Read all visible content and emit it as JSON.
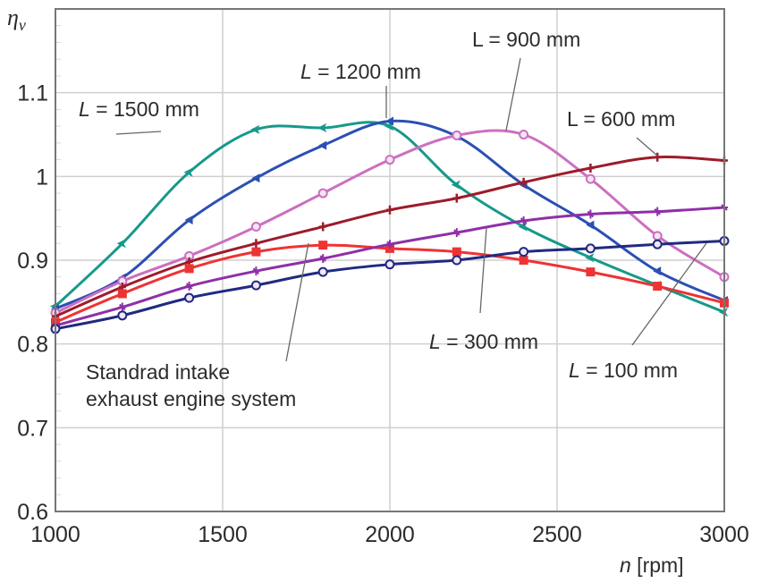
{
  "chart_data": {
    "type": "line",
    "title": "",
    "xlabel_var": "n",
    "xlabel_unit": " [rpm]",
    "ylabel_var": "η",
    "ylabel_sub": "v",
    "xlim": [
      1000,
      3000
    ],
    "ylim": [
      0.6,
      1.2
    ],
    "xticks": [
      1000,
      1500,
      2000,
      2500,
      3000
    ],
    "xtick_labels": [
      "1000",
      "1500",
      "2000",
      "2500",
      "3000"
    ],
    "yticks": [
      0.6,
      0.7,
      0.8,
      0.9,
      1.0,
      1.1
    ],
    "ytick_labels": [
      "0.6",
      "0.7",
      "0.8",
      "0.9",
      "1",
      "1.1"
    ],
    "grid": true,
    "x": [
      1000,
      1200,
      1400,
      1600,
      1800,
      2000,
      2200,
      2400,
      2600,
      2800,
      3000
    ],
    "series": [
      {
        "name": "L = 1500 mm",
        "color": "#17998a",
        "marker": "diamond",
        "values": [
          0.845,
          0.92,
          1.005,
          1.056,
          1.058,
          1.06,
          0.99,
          0.94,
          0.903,
          0.87,
          0.838
        ]
      },
      {
        "name": "L = 1200 mm",
        "color": "#2b4fb3",
        "marker": "triangle",
        "values": [
          0.842,
          0.879,
          0.948,
          0.998,
          1.037,
          1.066,
          1.048,
          0.99,
          0.942,
          0.887,
          0.852
        ]
      },
      {
        "name": "L = 900 mm",
        "color": "#cc6fc0",
        "marker": "circle-open",
        "values": [
          0.837,
          0.875,
          0.905,
          0.94,
          0.98,
          1.02,
          1.049,
          1.05,
          0.997,
          0.929,
          0.88
        ]
      },
      {
        "name": "L = 600 mm",
        "color": "#9e1b2a",
        "marker": "plus",
        "values": [
          0.833,
          0.868,
          0.898,
          0.92,
          0.94,
          0.96,
          0.974,
          0.993,
          1.01,
          1.023,
          1.019
        ]
      },
      {
        "name": "Standrad intake exhaust engine system",
        "color": "#ee3333",
        "marker": "square",
        "values": [
          0.826,
          0.86,
          0.89,
          0.91,
          0.918,
          0.914,
          0.91,
          0.9,
          0.886,
          0.869,
          0.849
        ]
      },
      {
        "name": "L = 300 mm",
        "color": "#8f2fa8",
        "marker": "star",
        "values": [
          0.822,
          0.844,
          0.869,
          0.887,
          0.902,
          0.919,
          0.933,
          0.947,
          0.955,
          0.958,
          0.963
        ]
      },
      {
        "name": "L = 100 mm",
        "color": "#1f2a80",
        "marker": "circle-open",
        "values": [
          0.818,
          0.834,
          0.855,
          0.87,
          0.886,
          0.895,
          0.9,
          0.91,
          0.914,
          0.919,
          0.923
        ]
      }
    ],
    "annotations": [
      {
        "text_var": "L",
        "text_rest": " = 1500 mm",
        "italic_var": true,
        "points_to": "L = 1500 mm",
        "at": [
          1390,
          1.0
        ]
      },
      {
        "text_var": "L",
        "text_rest": " = 1200 mm",
        "italic_var": true,
        "points_to": "L = 1200 mm",
        "at": [
          2100,
          1.066
        ]
      },
      {
        "text_var": "L",
        "text_rest": " = 900 mm",
        "italic_var": false,
        "points_to": "L = 900 mm",
        "at": [
          2320,
          1.055
        ]
      },
      {
        "text_var": "L",
        "text_rest": " = 600 mm",
        "italic_var": false,
        "points_to": "L = 600 mm",
        "at": [
          2800,
          1.023
        ]
      },
      {
        "text_var": "L",
        "text_rest": " = 300 mm",
        "italic_var": true,
        "points_to": "L = 300 mm",
        "at": [
          2290,
          0.935
        ]
      },
      {
        "text_var": "L",
        "text_rest": " = 100 mm",
        "italic_var": true,
        "points_to": "L = 100 mm",
        "at": [
          2940,
          0.921
        ]
      },
      {
        "text_line1": "Standrad intake",
        "text_line2": "exhaust engine system",
        "points_to": "Standrad intake exhaust engine system",
        "at": [
          1760,
          0.919
        ]
      }
    ]
  }
}
